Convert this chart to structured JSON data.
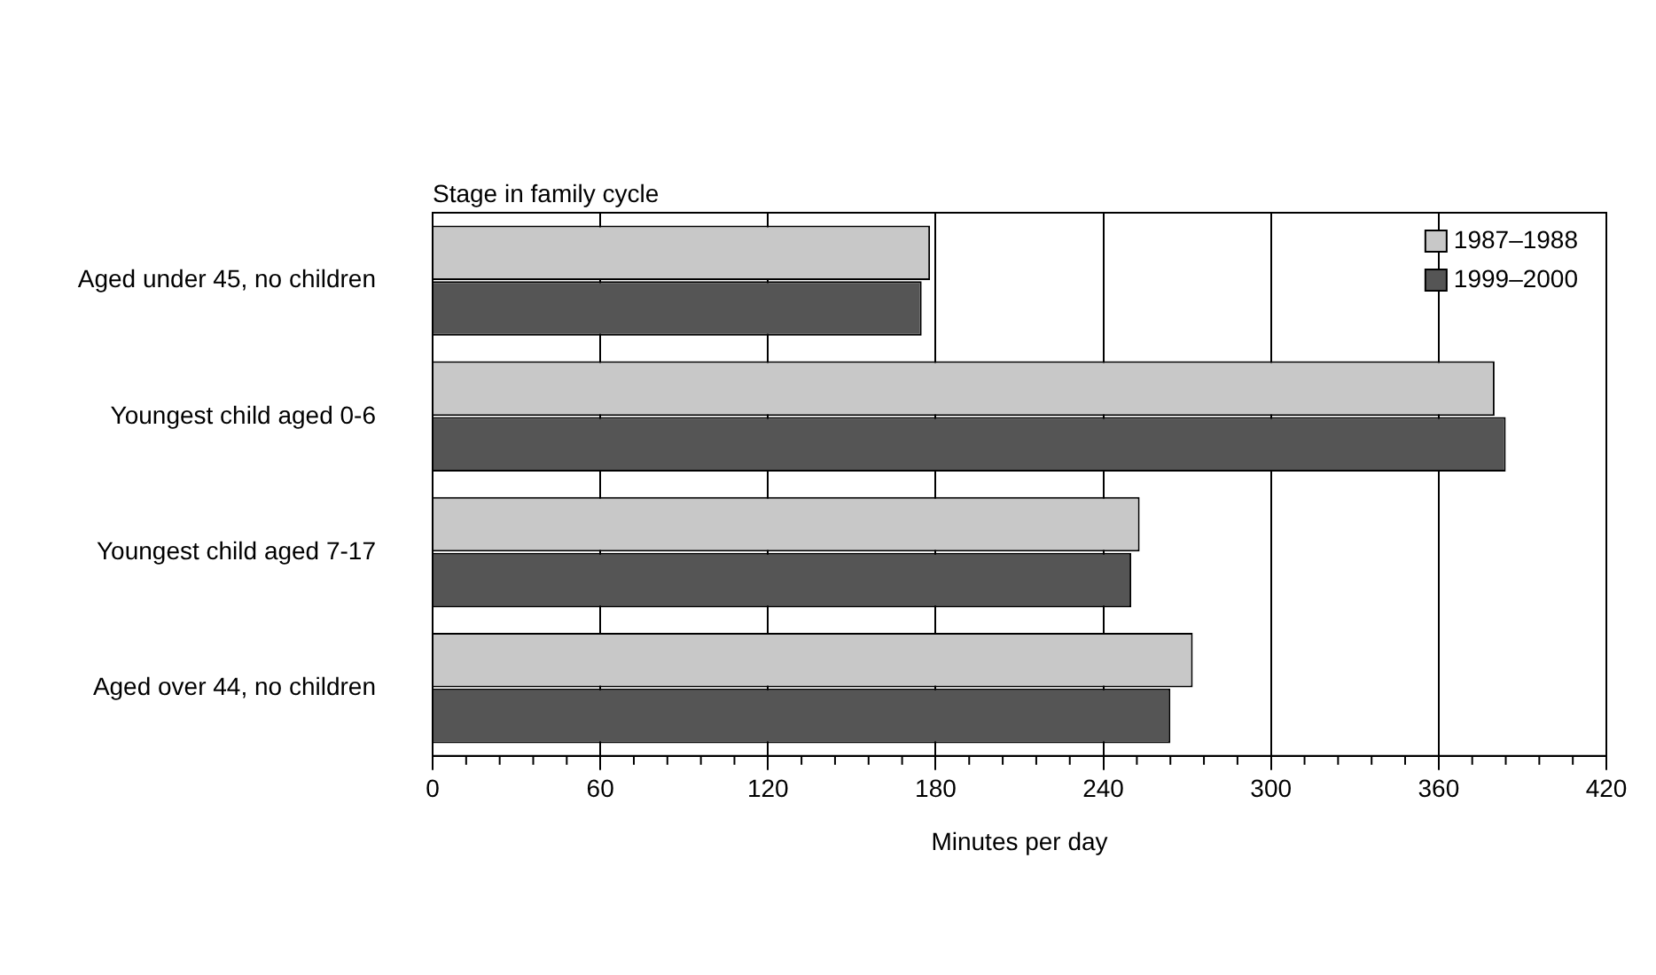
{
  "chart_data": {
    "type": "bar",
    "orientation": "horizontal",
    "ylabel": "Stage in family cycle",
    "xlabel": "Minutes per day",
    "categories": [
      "Aged under 45, no children",
      "Youngest child aged 0-6",
      "Youngest child aged 7-17",
      "Aged over 44, no children"
    ],
    "series": [
      {
        "name": "1987–1988",
        "color": "#c8c8c8",
        "values": [
          178,
          380,
          253,
          272
        ]
      },
      {
        "name": "1999–2000",
        "color": "#555555",
        "values": [
          175,
          384,
          250,
          264
        ]
      }
    ],
    "xlim": [
      0,
      420
    ],
    "xticks": [
      0,
      60,
      120,
      180,
      240,
      300,
      360,
      420
    ],
    "grid": "x",
    "legend": "top right"
  }
}
